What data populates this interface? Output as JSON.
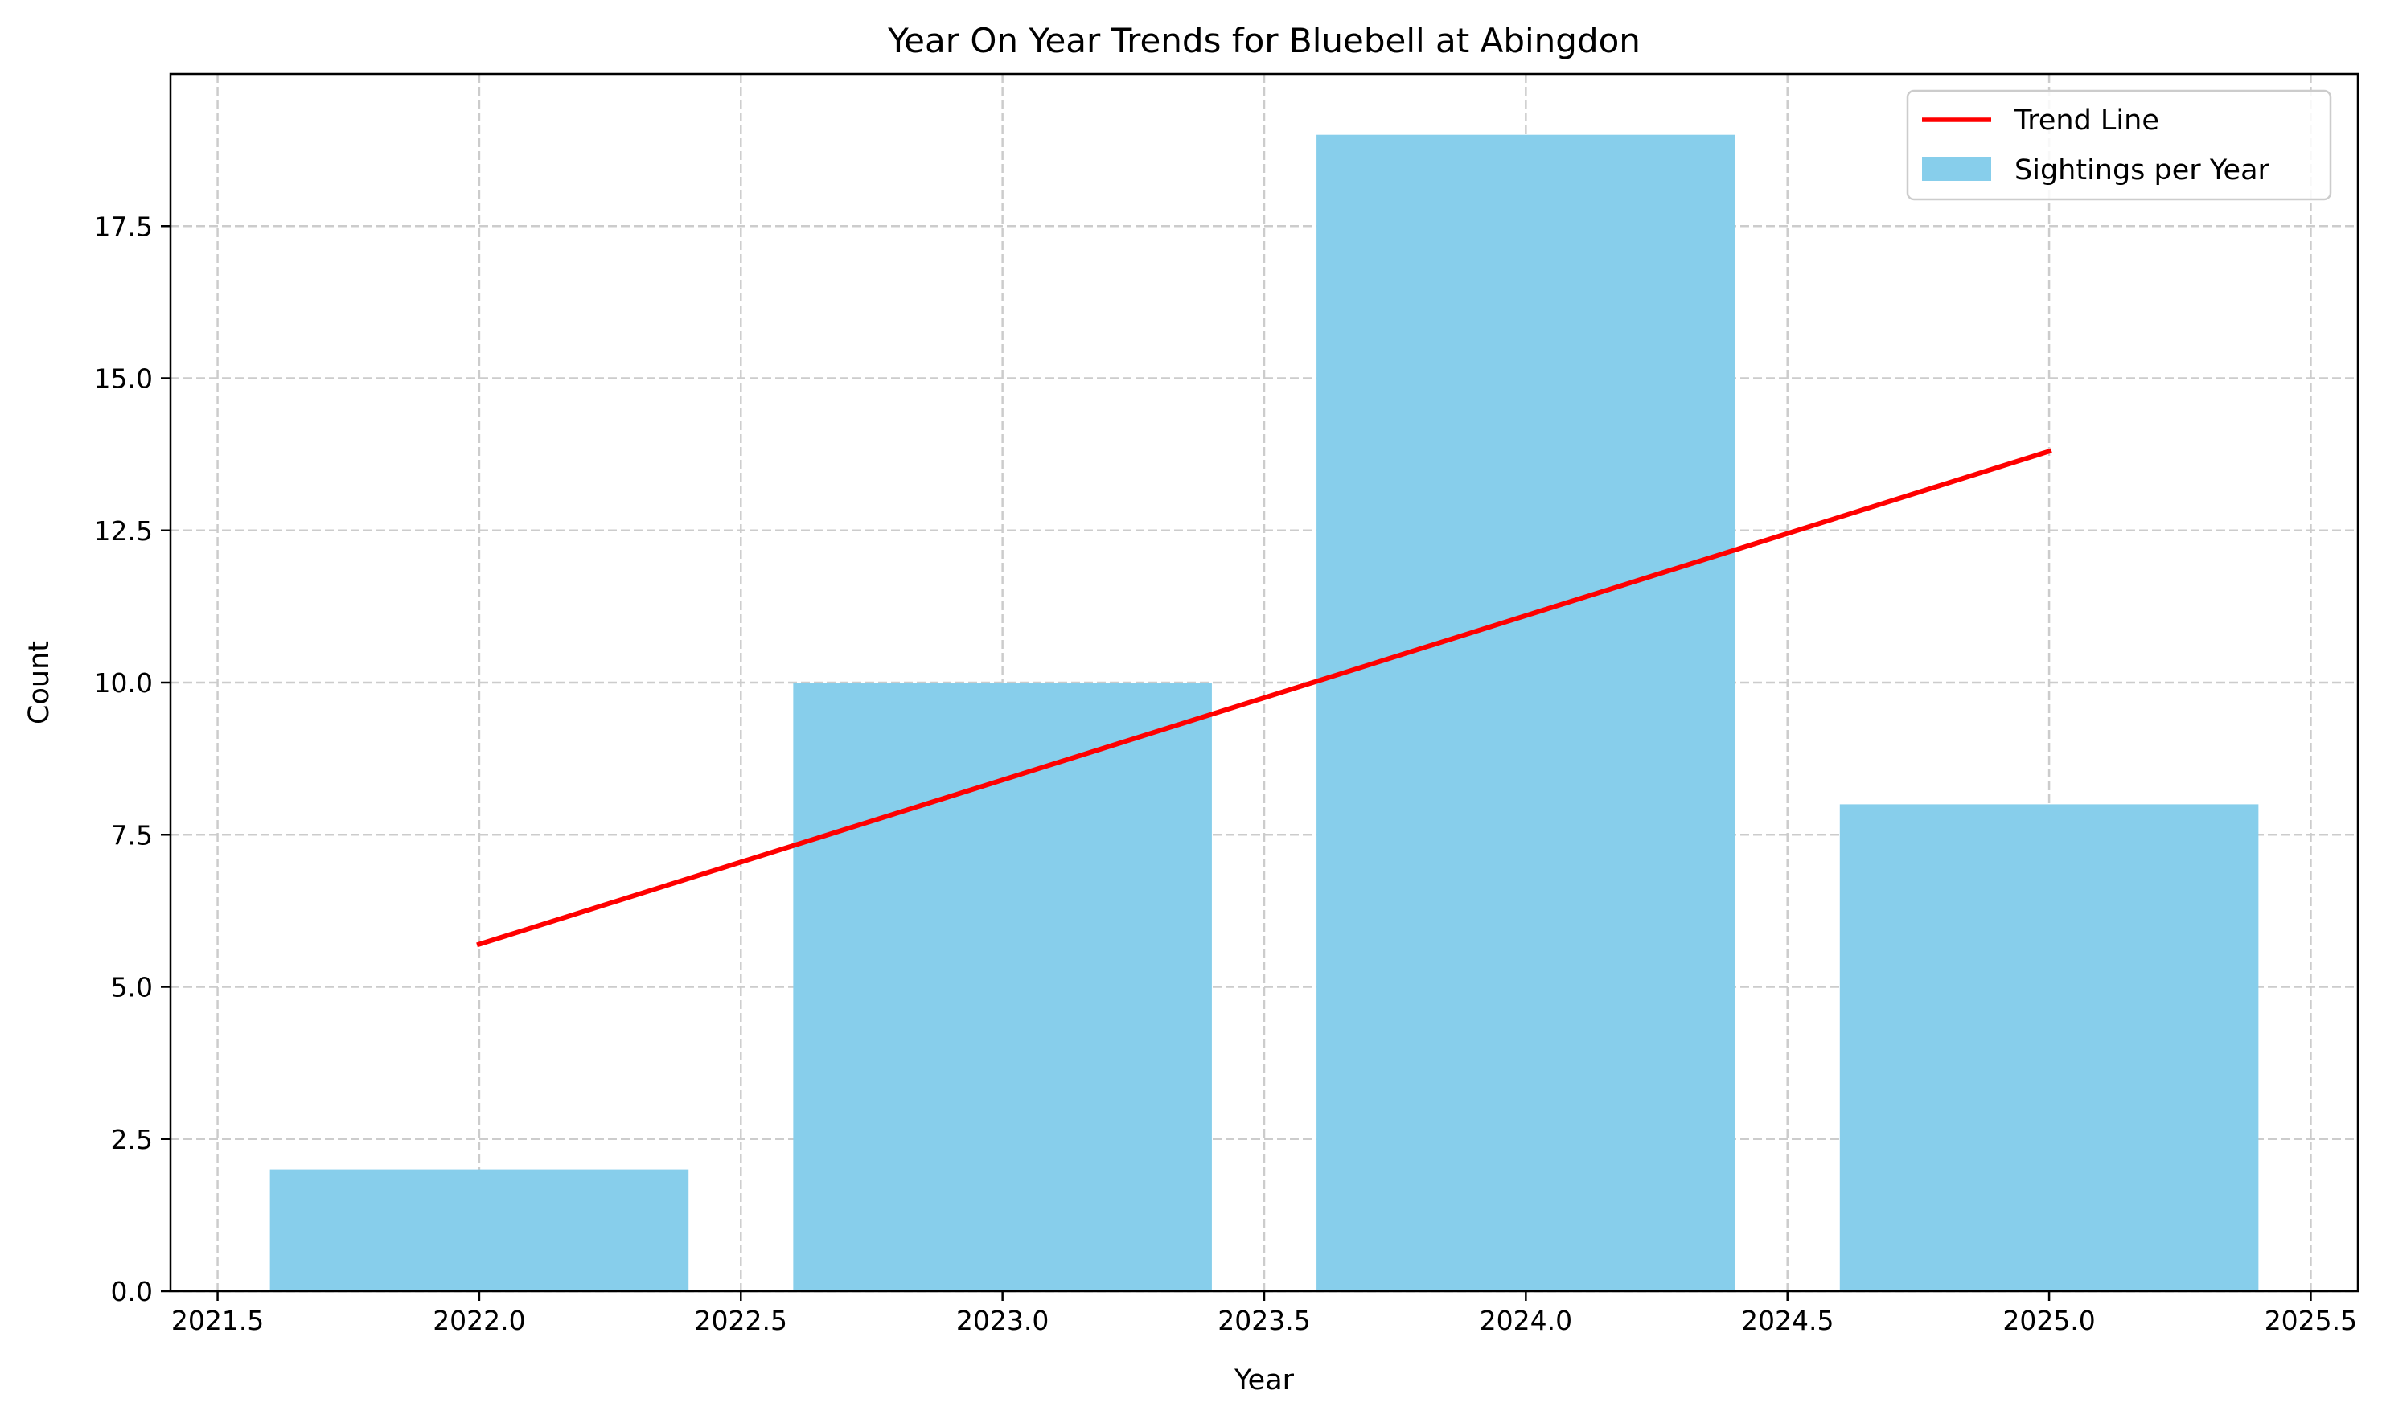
{
  "chart_data": {
    "type": "bar",
    "title": "Year On Year Trends for Bluebell at Abingdon",
    "xlabel": "Year",
    "ylabel": "Count",
    "xlim": [
      2021.41,
      2025.59
    ],
    "ylim": [
      0,
      20
    ],
    "grid": true,
    "legend_position": "top-right",
    "x_ticks": [
      2021.5,
      2022.0,
      2022.5,
      2023.0,
      2023.5,
      2024.0,
      2024.5,
      2025.0,
      2025.5
    ],
    "x_tick_labels": [
      "2021.5",
      "2022.0",
      "2022.5",
      "2023.0",
      "2023.5",
      "2024.0",
      "2024.5",
      "2025.0",
      "2025.5"
    ],
    "y_ticks": [
      0,
      2.5,
      5,
      7.5,
      10,
      12.5,
      15,
      17.5
    ],
    "y_tick_labels": [
      "0.0",
      "2.5",
      "5.0",
      "7.5",
      "10.0",
      "12.5",
      "15.0",
      "17.5"
    ],
    "bar_width": 0.8,
    "series": [
      {
        "name": "Sightings per Year",
        "kind": "bar",
        "color": "#87ceeb",
        "x": [
          2022,
          2023,
          2024,
          2025
        ],
        "values": [
          2,
          10,
          19,
          8
        ]
      },
      {
        "name": "Trend Line",
        "kind": "line",
        "color": "#ff0000",
        "x": [
          2022,
          2025
        ],
        "values": [
          5.7,
          13.8
        ]
      }
    ]
  }
}
